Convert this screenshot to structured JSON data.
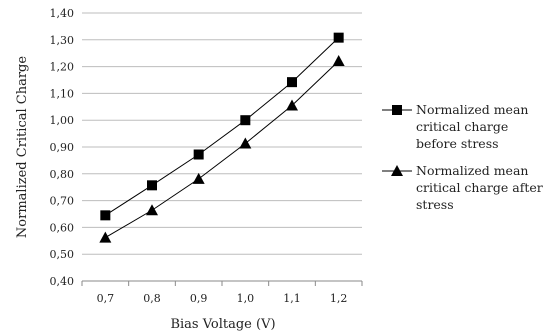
{
  "chart_data": {
    "type": "line",
    "title": "",
    "xlabel": "Bias Voltage (V)",
    "ylabel": "Normalized Critical Charge",
    "categories": [
      "0,7",
      "0,8",
      "0,9",
      "1,0",
      "1,1",
      "1,2"
    ],
    "x": [
      0.7,
      0.8,
      0.9,
      1.0,
      1.1,
      1.2
    ],
    "ylim": [
      0.4,
      1.4
    ],
    "ytick_step": 0.1,
    "ytick_labels": [
      "0,40",
      "0,50",
      "0,60",
      "0,70",
      "0,80",
      "0,90",
      "1,00",
      "1,10",
      "1,20",
      "1,30",
      "1,40"
    ],
    "grid": {
      "y": true,
      "x": false
    },
    "legend_position": "right",
    "series": [
      {
        "name": "Normalized mean critical charge before stress",
        "legend_lines": [
          "Normalized mean",
          "critical charge",
          "before stress"
        ],
        "marker": "square",
        "color": "#000000",
        "values": [
          0.645,
          0.757,
          0.872,
          1.0,
          1.142,
          1.308
        ]
      },
      {
        "name": "Normalized mean critical charge after stress",
        "legend_lines": [
          "Normalized mean",
          "critical charge after",
          "stress"
        ],
        "marker": "triangle",
        "color": "#000000",
        "values": [
          0.562,
          0.664,
          0.781,
          0.913,
          1.055,
          1.221
        ]
      }
    ]
  }
}
